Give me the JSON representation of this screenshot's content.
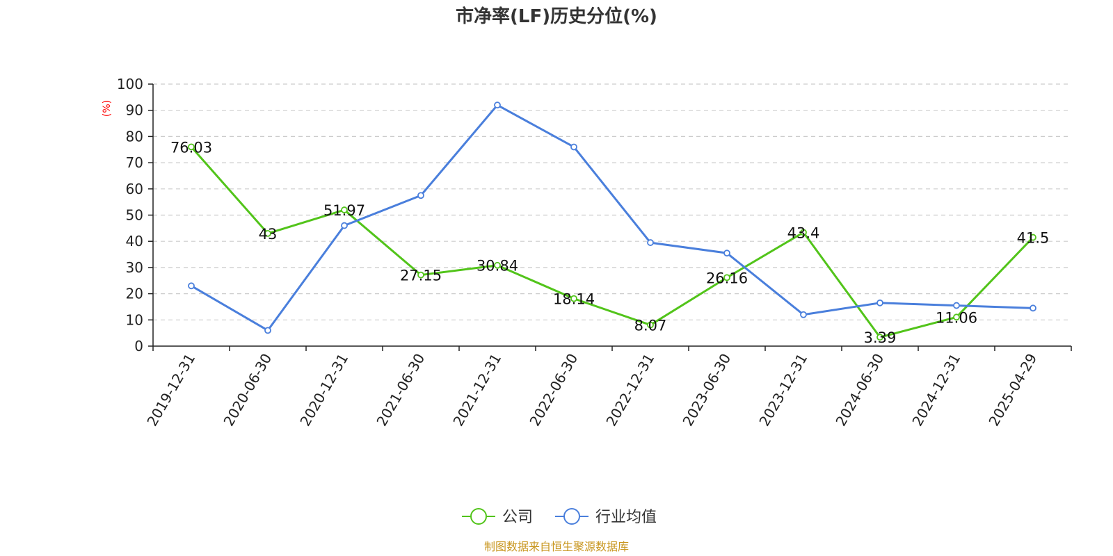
{
  "chart_data": {
    "type": "line",
    "title": "市净率(LF)历史分位(%)",
    "y_unit": "(%)",
    "ylim": [
      0,
      100
    ],
    "y_ticks": [
      0,
      10,
      20,
      30,
      40,
      50,
      60,
      70,
      80,
      90,
      100
    ],
    "grid": true,
    "legend_position": "bottom",
    "categories": [
      "2019-12-31",
      "2020-06-30",
      "2020-12-31",
      "2021-06-30",
      "2021-12-31",
      "2022-06-30",
      "2022-12-31",
      "2023-06-30",
      "2023-12-31",
      "2024-06-30",
      "2024-12-31",
      "2025-04-29"
    ],
    "series": [
      {
        "name": "公司",
        "color": "#52c41a",
        "values": [
          76.03,
          43,
          51.97,
          27.15,
          30.84,
          18.14,
          8.07,
          26.16,
          43.4,
          3.39,
          11.06,
          41.5
        ],
        "labels": [
          "76.03",
          "43",
          "51.97",
          "27.15",
          "30.84",
          "18.14",
          "8.07",
          "26.16",
          "43.4",
          "3.39",
          "11.06",
          "41.5"
        ]
      },
      {
        "name": "行业均值",
        "color": "#4a7fdc",
        "values": [
          23,
          6,
          46,
          57.5,
          92,
          76,
          39.5,
          35.5,
          12,
          16.5,
          15.5,
          14.5
        ]
      }
    ],
    "source": "制图数据来自恒生聚源数据库"
  }
}
